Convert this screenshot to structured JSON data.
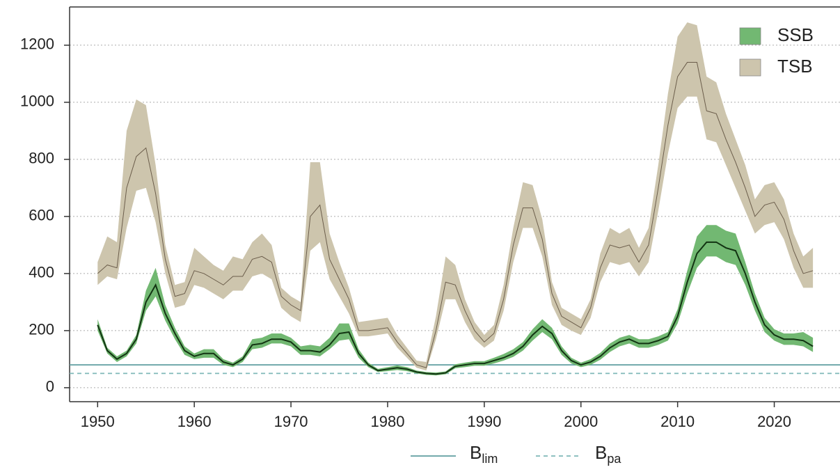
{
  "chart_data": {
    "type": "band-line",
    "x": [
      1950,
      1951,
      1952,
      1953,
      1954,
      1955,
      1956,
      1957,
      1958,
      1959,
      1960,
      1961,
      1962,
      1963,
      1964,
      1965,
      1966,
      1967,
      1968,
      1969,
      1970,
      1971,
      1972,
      1973,
      1974,
      1975,
      1976,
      1977,
      1978,
      1979,
      1980,
      1981,
      1982,
      1983,
      1984,
      1985,
      1986,
      1987,
      1988,
      1989,
      1990,
      1991,
      1992,
      1993,
      1994,
      1995,
      1996,
      1997,
      1998,
      1999,
      2000,
      2001,
      2002,
      2003,
      2004,
      2005,
      2006,
      2007,
      2008,
      2009,
      2010,
      2011,
      2012,
      2013,
      2014,
      2015,
      2016,
      2017,
      2018,
      2019,
      2020,
      2021,
      2022,
      2023,
      2024
    ],
    "xlim": [
      1947.1,
      2026.8
    ],
    "xticks": [
      1950,
      1960,
      1970,
      1980,
      1990,
      2000,
      2010,
      2020
    ],
    "ylim": [
      -49,
      1334
    ],
    "yticks": [
      0,
      200,
      400,
      600,
      800,
      1000,
      1200
    ],
    "grid": true,
    "legend": "top-right",
    "series": [
      {
        "name": "TSB",
        "color": "#cdc5ad",
        "line_color": "#6b5d4b",
        "values": [
          400,
          430,
          420,
          700,
          810,
          840,
          680,
          450,
          320,
          330,
          410,
          400,
          380,
          360,
          390,
          390,
          450,
          460,
          440,
          320,
          290,
          270,
          600,
          640,
          450,
          380,
          310,
          200,
          200,
          205,
          210,
          160,
          120,
          80,
          70,
          200,
          370,
          360,
          270,
          200,
          160,
          190,
          310,
          500,
          630,
          630,
          520,
          330,
          250,
          230,
          210,
          280,
          420,
          500,
          490,
          500,
          440,
          500,
          700,
          920,
          1090,
          1140,
          1140,
          970,
          960,
          870,
          790,
          700,
          600,
          640,
          650,
          590,
          480,
          400,
          410
        ],
        "lower": [
          360,
          390,
          380,
          560,
          690,
          700,
          580,
          400,
          280,
          290,
          360,
          350,
          330,
          310,
          340,
          340,
          390,
          400,
          380,
          280,
          250,
          230,
          480,
          510,
          380,
          320,
          260,
          180,
          180,
          185,
          190,
          140,
          105,
          70,
          60,
          170,
          310,
          310,
          230,
          170,
          140,
          165,
          270,
          440,
          560,
          560,
          460,
          290,
          220,
          200,
          185,
          245,
          370,
          440,
          430,
          440,
          390,
          440,
          620,
          820,
          980,
          1020,
          1020,
          870,
          860,
          780,
          700,
          620,
          540,
          570,
          580,
          520,
          420,
          350,
          350
        ],
        "upper": [
          440,
          530,
          510,
          900,
          1010,
          990,
          780,
          500,
          360,
          370,
          490,
          460,
          430,
          410,
          460,
          450,
          510,
          540,
          500,
          350,
          320,
          300,
          790,
          790,
          540,
          440,
          350,
          230,
          235,
          240,
          245,
          185,
          140,
          95,
          90,
          250,
          460,
          430,
          310,
          230,
          185,
          220,
          360,
          560,
          720,
          710,
          590,
          370,
          280,
          260,
          240,
          310,
          470,
          560,
          540,
          560,
          490,
          560,
          780,
          1030,
          1230,
          1280,
          1270,
          1090,
          1070,
          960,
          870,
          780,
          660,
          710,
          720,
          660,
          540,
          460,
          490
        ]
      },
      {
        "name": "SSB",
        "color": "#72b872",
        "line_color": "#123312",
        "values": [
          220,
          130,
          100,
          120,
          170,
          300,
          360,
          260,
          190,
          130,
          110,
          120,
          120,
          90,
          80,
          100,
          150,
          155,
          170,
          170,
          160,
          130,
          130,
          125,
          150,
          190,
          195,
          120,
          80,
          60,
          65,
          70,
          65,
          55,
          50,
          48,
          52,
          75,
          80,
          85,
          85,
          95,
          105,
          120,
          145,
          185,
          215,
          190,
          130,
          95,
          80,
          90,
          110,
          140,
          160,
          170,
          155,
          155,
          165,
          180,
          250,
          370,
          470,
          510,
          510,
          490,
          480,
          400,
          300,
          220,
          185,
          170,
          170,
          165,
          145
        ],
        "lower": [
          200,
          120,
          90,
          110,
          155,
          270,
          320,
          235,
          170,
          115,
          100,
          105,
          105,
          80,
          72,
          90,
          135,
          140,
          155,
          155,
          145,
          115,
          115,
          110,
          135,
          165,
          170,
          105,
          72,
          55,
          58,
          62,
          58,
          50,
          45,
          43,
          47,
          68,
          72,
          77,
          77,
          85,
          95,
          108,
          130,
          165,
          195,
          170,
          115,
          85,
          72,
          80,
          98,
          125,
          145,
          155,
          140,
          140,
          150,
          165,
          225,
          330,
          420,
          460,
          460,
          440,
          430,
          360,
          270,
          195,
          165,
          150,
          150,
          145,
          125
        ],
        "upper": [
          240,
          140,
          110,
          130,
          185,
          340,
          420,
          290,
          210,
          145,
          120,
          135,
          135,
          100,
          88,
          110,
          170,
          175,
          190,
          190,
          175,
          145,
          150,
          145,
          175,
          225,
          225,
          135,
          88,
          66,
          72,
          78,
          72,
          60,
          55,
          53,
          57,
          82,
          88,
          93,
          93,
          105,
          118,
          135,
          160,
          205,
          240,
          210,
          145,
          105,
          88,
          100,
          122,
          155,
          175,
          185,
          170,
          170,
          180,
          195,
          275,
          410,
          530,
          570,
          570,
          550,
          540,
          440,
          330,
          245,
          205,
          190,
          190,
          195,
          175
        ]
      }
    ],
    "reference_lines": [
      {
        "name": "B",
        "subscript": "lim",
        "value": 80,
        "color": "#5f9ea0",
        "style": "solid"
      },
      {
        "name": "B",
        "subscript": "pa",
        "value": 50,
        "color": "#7fb8b8",
        "style": "dashed"
      }
    ]
  }
}
